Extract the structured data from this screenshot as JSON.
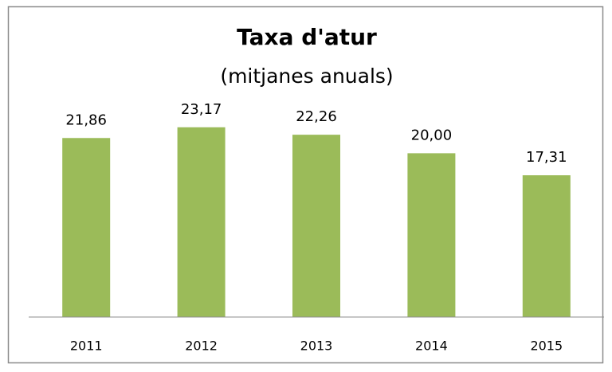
{
  "chart_data": {
    "type": "bar",
    "title": "Taxa d'atur",
    "subtitle": "(mitjanes anuals)",
    "categories": [
      "2011",
      "2012",
      "2013",
      "2014",
      "2015"
    ],
    "values": [
      21.86,
      23.17,
      22.26,
      20.0,
      17.31
    ],
    "value_labels": [
      "21,86",
      "23,17",
      "22,26",
      "20,00",
      "17,31"
    ],
    "color": "#9bbb59",
    "ylim": [
      0,
      32
    ]
  }
}
